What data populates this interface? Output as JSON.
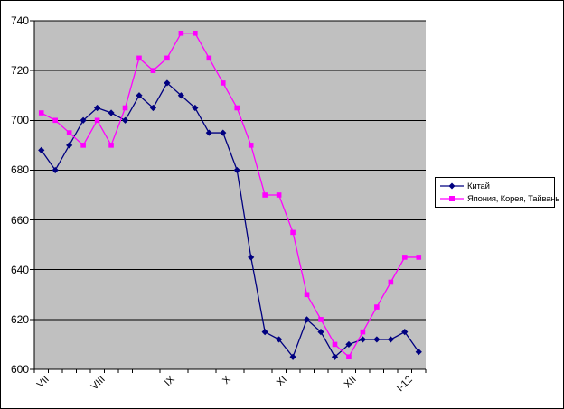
{
  "chart_data": {
    "type": "line",
    "title": "",
    "n_points": 28,
    "x_axis": {
      "tick_labels": [
        {
          "index": 0,
          "label": "VII"
        },
        {
          "index": 4,
          "label": "VIII"
        },
        {
          "index": 9,
          "label": "IX"
        },
        {
          "index": 13,
          "label": "X"
        },
        {
          "index": 17,
          "label": "XI"
        },
        {
          "index": 22,
          "label": "XII"
        },
        {
          "index": 26,
          "label": "I-12"
        }
      ]
    },
    "y_axis": {
      "min": 600,
      "max": 740,
      "step": 20,
      "ticks": [
        740,
        720,
        700,
        680,
        660,
        640,
        620,
        600
      ]
    },
    "series": [
      {
        "name": "Китай",
        "color": "#000080",
        "marker": "diamond",
        "values": [
          688,
          680,
          690,
          700,
          705,
          703,
          700,
          710,
          705,
          715,
          710,
          705,
          695,
          695,
          680,
          645,
          615,
          612,
          605,
          620,
          615,
          605,
          610,
          612,
          612,
          612,
          615,
          607
        ]
      },
      {
        "name": "Япония, Корея, Тайвань",
        "color": "#FF00FF",
        "marker": "square",
        "values": [
          703,
          700,
          695,
          690,
          700,
          690,
          705,
          725,
          720,
          725,
          735,
          735,
          725,
          715,
          705,
          690,
          670,
          670,
          655,
          630,
          620,
          610,
          605,
          615,
          625,
          635,
          645,
          645
        ]
      }
    ],
    "grid": true,
    "legend_position": "middle-right",
    "colors": {
      "plot_bg": "#C0C0C0",
      "grid": "#000000",
      "axis": "#000000",
      "chart_bg": "#FFFFFF",
      "border": "#000000"
    }
  }
}
